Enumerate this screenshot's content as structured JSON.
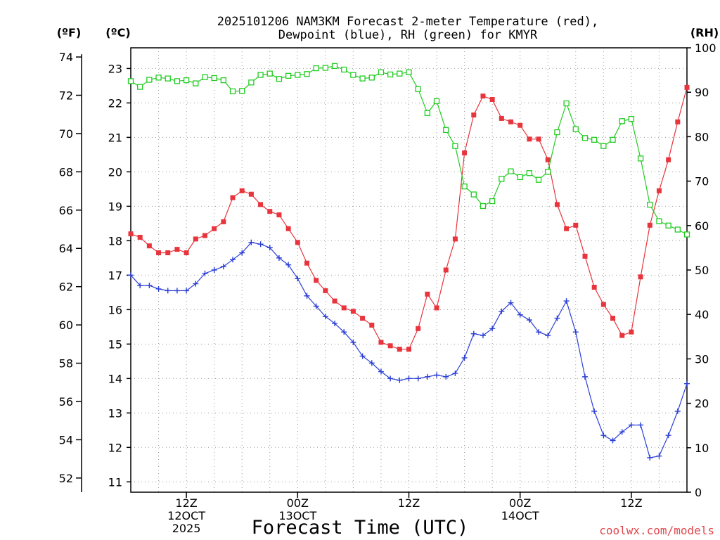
{
  "chart_data": {
    "type": "line",
    "title_line1": "2025101206 NAM3KM Forecast 2-meter Temperature (red),",
    "title_line2": "Dewpoint (blue), RH (green) for KMYR",
    "xlabel": "Forecast Time (UTC)",
    "credit": "coolwx.com/models",
    "units": {
      "fahrenheit": "(ºF)",
      "celsius": "(ºC)",
      "rh": "(RH)"
    },
    "x_range_hours": [
      0,
      60
    ],
    "celsius_range": [
      10.7,
      23.6
    ],
    "fahrenheit_ticks": [
      "52",
      "54",
      "56",
      "58",
      "60",
      "62",
      "64",
      "66",
      "68",
      "70",
      "72",
      "74"
    ],
    "celsius_ticks": [
      "11",
      "12",
      "13",
      "14",
      "15",
      "16",
      "17",
      "18",
      "19",
      "20",
      "21",
      "22",
      "23"
    ],
    "rh_range": [
      0,
      100
    ],
    "rh_ticks": [
      "0",
      "10",
      "20",
      "30",
      "40",
      "50",
      "60",
      "70",
      "80",
      "90",
      "100"
    ],
    "x_ticks": [
      {
        "hour": 6,
        "lines": [
          "12Z",
          "12OCT",
          "2025"
        ]
      },
      {
        "hour": 18,
        "lines": [
          "00Z",
          "13OCT"
        ]
      },
      {
        "hour": 30,
        "lines": [
          "12Z"
        ]
      },
      {
        "hour": 42,
        "lines": [
          "00Z",
          "14OCT"
        ]
      },
      {
        "hour": 54,
        "lines": [
          "12Z"
        ]
      }
    ],
    "series": [
      {
        "name": "Temperature",
        "axis": "celsius",
        "color": "#e8343c",
        "marker": "filled-square",
        "values": [
          18.2,
          18.1,
          17.85,
          17.65,
          17.65,
          17.75,
          17.65,
          18.05,
          18.15,
          18.35,
          18.55,
          19.25,
          19.45,
          19.35,
          19.05,
          18.85,
          18.75,
          18.35,
          17.95,
          17.35,
          16.85,
          16.55,
          16.25,
          16.05,
          15.95,
          15.75,
          15.55,
          15.05,
          14.95,
          14.85,
          14.85,
          15.45,
          16.45,
          16.05,
          17.15,
          18.05,
          20.55,
          21.65,
          22.2,
          22.1,
          21.55,
          21.45,
          21.35,
          20.95,
          20.95,
          20.35,
          19.05,
          18.35,
          18.45,
          17.55,
          16.65,
          16.15,
          15.75,
          15.25,
          15.35,
          16.95,
          18.45,
          19.45,
          20.35,
          21.45,
          22.45
        ]
      },
      {
        "name": "Dewpoint",
        "axis": "celsius",
        "color": "#2a3fd6",
        "marker": "plus",
        "values": [
          17.0,
          16.7,
          16.7,
          16.6,
          16.55,
          16.55,
          16.55,
          16.75,
          17.05,
          17.15,
          17.25,
          17.45,
          17.65,
          17.95,
          17.9,
          17.8,
          17.5,
          17.3,
          16.9,
          16.4,
          16.1,
          15.8,
          15.6,
          15.35,
          15.05,
          14.65,
          14.45,
          14.2,
          14.0,
          13.95,
          14.0,
          14.0,
          14.05,
          14.1,
          14.05,
          14.15,
          14.6,
          15.3,
          15.25,
          15.45,
          15.95,
          16.2,
          15.85,
          15.7,
          15.35,
          15.25,
          15.75,
          16.25,
          15.35,
          14.05,
          13.05,
          12.35,
          12.2,
          12.45,
          12.65,
          12.65,
          11.7,
          11.75,
          12.35,
          13.05,
          13.85
        ]
      },
      {
        "name": "RH",
        "axis": "rh",
        "color": "#22cc22",
        "marker": "open-square",
        "values": [
          92.5,
          91.2,
          92.8,
          93.3,
          93.1,
          92.5,
          92.7,
          92.0,
          93.4,
          93.2,
          92.7,
          90.2,
          90.3,
          92.2,
          93.9,
          94.2,
          93.0,
          93.7,
          93.9,
          94.1,
          95.4,
          95.5,
          95.9,
          95.1,
          93.9,
          93.1,
          93.3,
          94.5,
          94.0,
          94.2,
          94.5,
          90.7,
          85.3,
          88.0,
          81.5,
          77.9,
          68.8,
          67.0,
          64.4,
          65.5,
          70.5,
          72.2,
          70.9,
          71.8,
          70.3,
          72.1,
          81.0,
          87.5,
          81.7,
          79.7,
          79.3,
          77.9,
          79.3,
          83.5,
          84.0,
          75.1,
          64.7,
          61.0,
          60.0,
          59.1,
          58.0
        ]
      }
    ]
  }
}
